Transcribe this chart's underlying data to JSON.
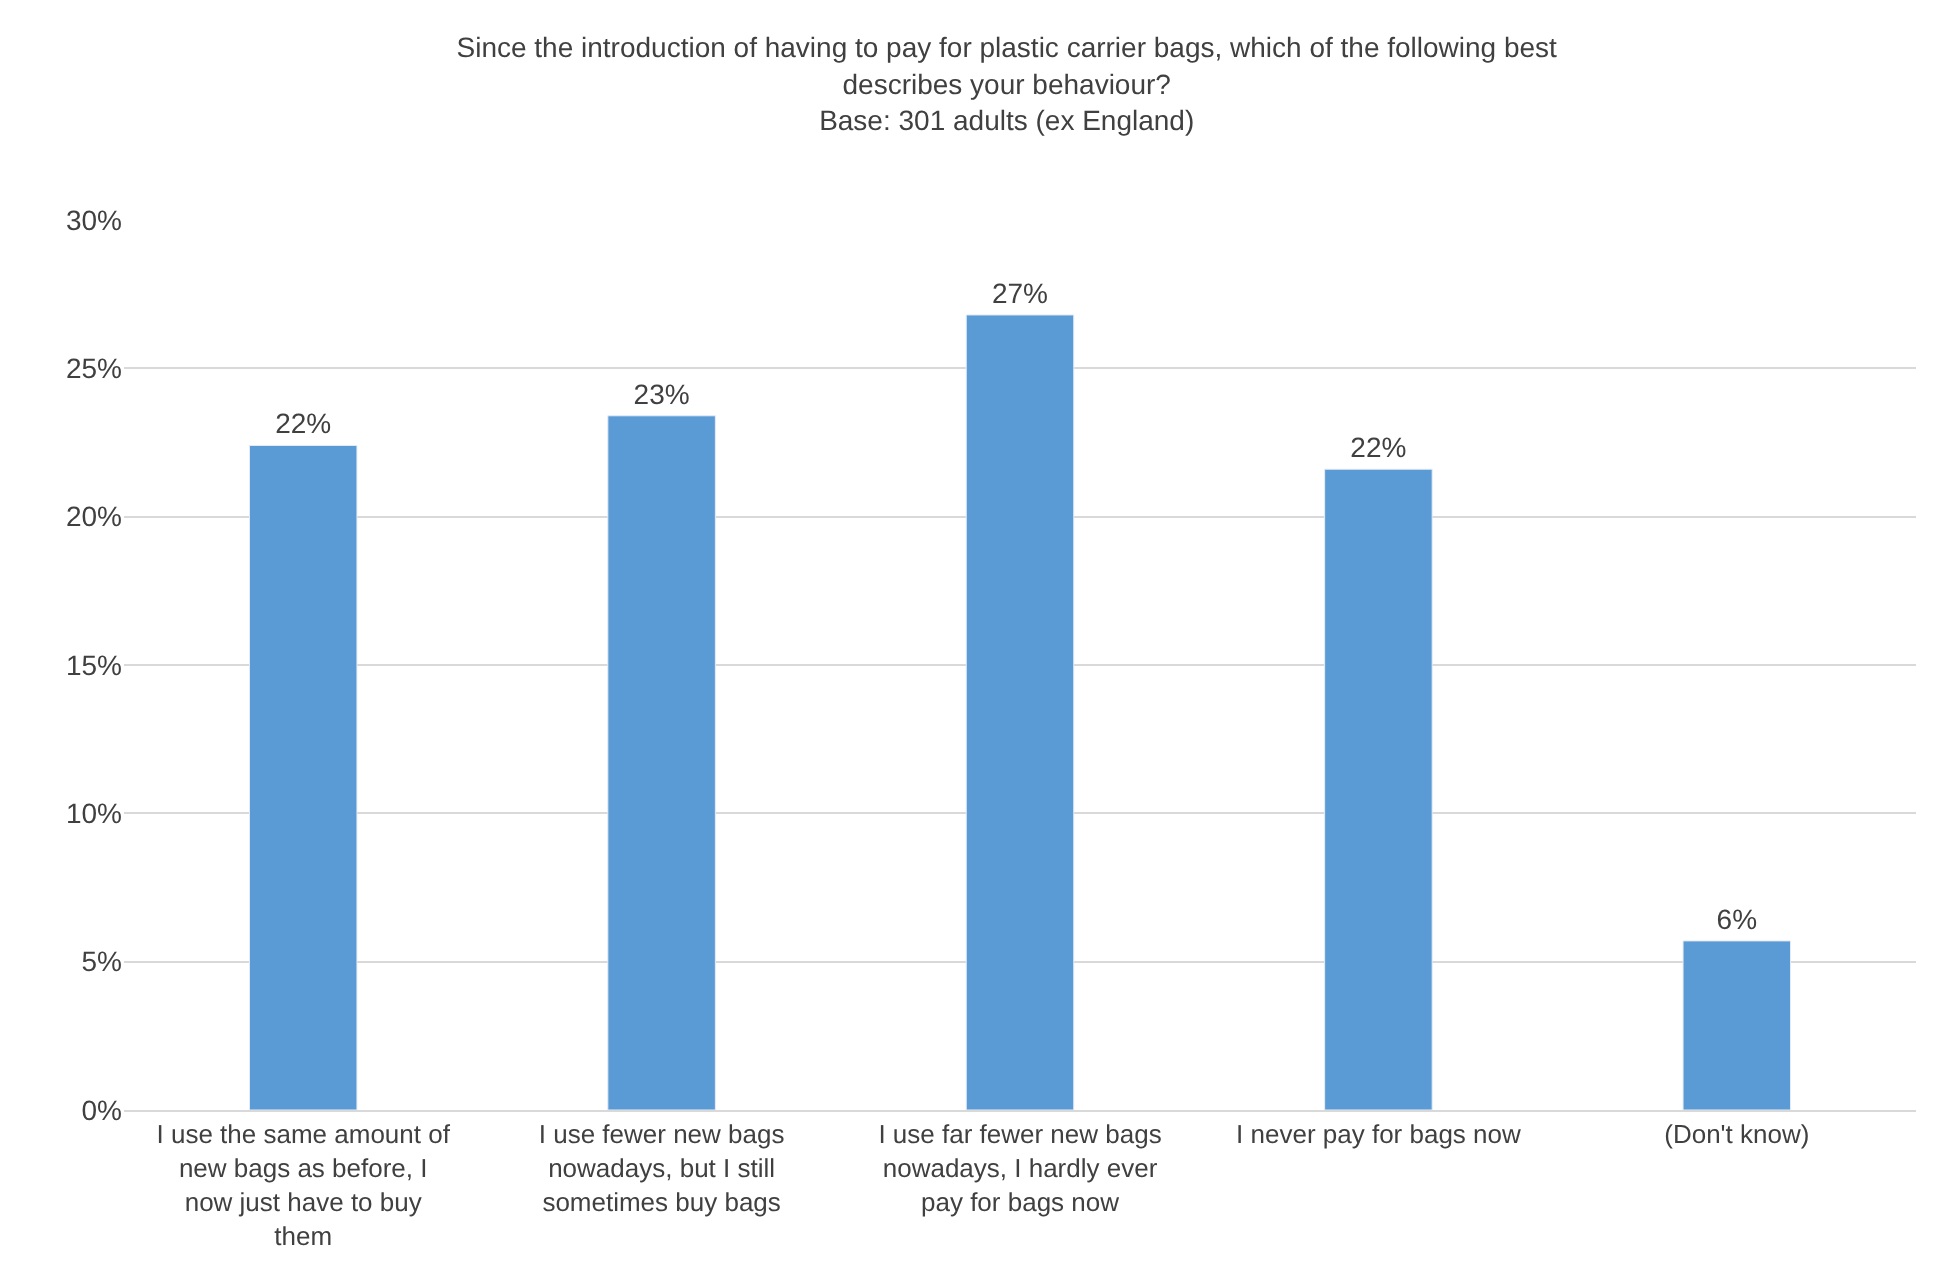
{
  "chart_data": {
    "type": "bar",
    "title": "Since the introduction of having to pay for plastic carrier bags, which of the following best describes your behaviour?",
    "subtitle": "Base: 301 adults (ex England)",
    "categories": [
      "I use the same amount of new bags as before, I now just have to buy them",
      "I use fewer new bags nowadays, but I still sometimes buy bags",
      "I use far fewer new bags nowadays, I hardly ever pay for bags now",
      "I never pay for bags now",
      "(Don't know)"
    ],
    "values": [
      22.4,
      23.4,
      26.8,
      21.6,
      5.7
    ],
    "value_labels": [
      "22%",
      "23%",
      "27%",
      "22%",
      "6%"
    ],
    "color": "#5b9bd5",
    "ylim": [
      0,
      30
    ],
    "yticks": [
      {
        "value": 0,
        "label": "0%"
      },
      {
        "value": 5,
        "label": "5%"
      },
      {
        "value": 10,
        "label": "10%"
      },
      {
        "value": 15,
        "label": "15%"
      },
      {
        "value": 20,
        "label": "20%"
      },
      {
        "value": 25,
        "label": "25%"
      },
      {
        "value": 30,
        "label": "30%"
      }
    ],
    "grid": "y",
    "legend": false
  }
}
